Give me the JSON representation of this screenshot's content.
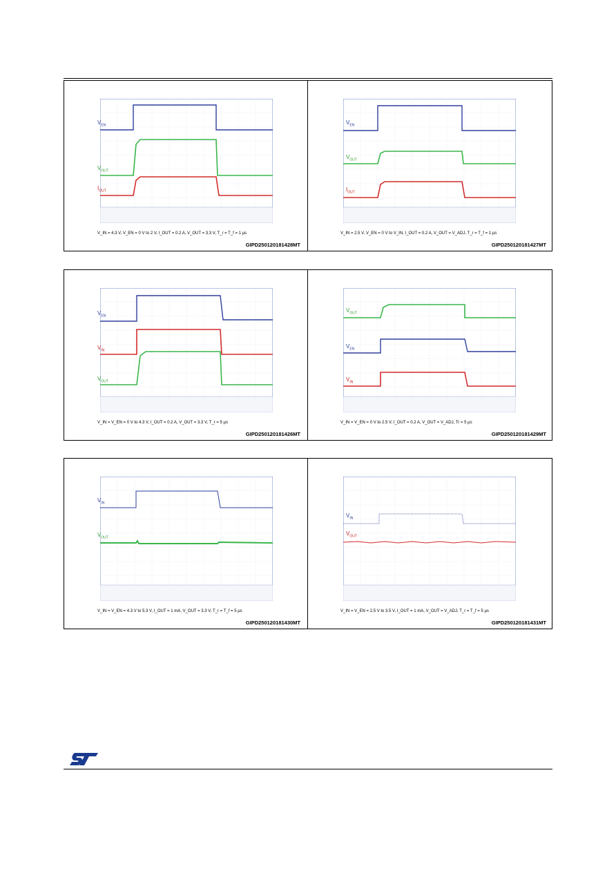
{
  "panels": [
    {
      "left": {
        "signals": [
          "V_EN",
          "V_OUT",
          "I_OUT"
        ],
        "labels": [
          {
            "main": "V",
            "sub": "EN",
            "color": "#2e3f9c"
          },
          {
            "main": "V",
            "sub": "OUT",
            "color": "#2e9c2e"
          },
          {
            "main": "I",
            "sub": "OUT",
            "color": "#c81e1e"
          }
        ],
        "caption": "V_IN = 4.3 V, V_EN = 0 V to 2 V, I_OUT = 0.2 A, V_OUT = 3.3 V, T_r = T_f = 1 µs",
        "code": "GIPD250120181428MT"
      },
      "right": {
        "labels": [
          {
            "main": "V",
            "sub": "EN",
            "color": "#2e3f9c"
          },
          {
            "main": "V",
            "sub": "OUT",
            "color": "#2e9c2e"
          },
          {
            "main": "I",
            "sub": "OUT",
            "color": "#c81e1e"
          }
        ],
        "caption": "V_IN = 2.5 V, V_EN = 0 V to V_IN, I_OUT = 0.2 A, V_OUT = V_ADJ, T_r = T_f = 1 µs",
        "code": "GIPD250120181427MT"
      }
    },
    {
      "left": {
        "labels": [
          {
            "main": "V",
            "sub": "EN",
            "color": "#2e3f9c"
          },
          {
            "main": "V",
            "sub": "IN",
            "color": "#c81e1e"
          },
          {
            "main": "V",
            "sub": "OUT",
            "color": "#2e9c2e"
          }
        ],
        "caption": "V_IN = V_EN = 0 V to 4.3 V, I_OUT = 0.2 A, V_OUT = 3.3 V, T_r = 5 µs",
        "code": "GIPD250120181426MT"
      },
      "right": {
        "labels": [
          {
            "main": "V",
            "sub": "OUT",
            "color": "#2e9c2e"
          },
          {
            "main": "V",
            "sub": "EN",
            "color": "#2e3f9c"
          },
          {
            "main": "V",
            "sub": "IN",
            "color": "#c81e1e"
          }
        ],
        "caption": "V_IN = V_EN = 0 V to 2.5 V, I_OUT = 0.2 A, V_OUT = V_ADJ, Tr = 5 µs",
        "code": "GIPD250120181429MT"
      }
    },
    {
      "left": {
        "labels": [
          {
            "main": "V",
            "sub": "IN",
            "color": "#2e3f9c"
          },
          {
            "main": "V",
            "sub": "OUT",
            "color": "#2e9c2e"
          }
        ],
        "caption": "V_IN = V_EN = 4.3 V to 5.3 V, I_OUT = 1 mA, V_OUT = 3.3 V, T_r = T_f = 5 µs",
        "code": "GIPD250120181430MT"
      },
      "right": {
        "labels": [
          {
            "main": "V",
            "sub": "IN",
            "color": "#2e3f9c"
          },
          {
            "main": "V",
            "sub": "OUT",
            "color": "#c81e1e"
          }
        ],
        "caption": "V_IN = V_EN = 2.5 V to 3.5 V, I_OUT = 1 mA, V_OUT = V_ADJ, T_r = T_f = 5 µs",
        "code": "GIPD250120181431MT"
      }
    }
  ],
  "colors": {
    "blue": "#2e3f9c",
    "green": "#39b54a",
    "red": "#d42a2a",
    "grid": "#c9d3e8",
    "frame": "#6f86c9"
  },
  "logo": "st-logo-icon"
}
